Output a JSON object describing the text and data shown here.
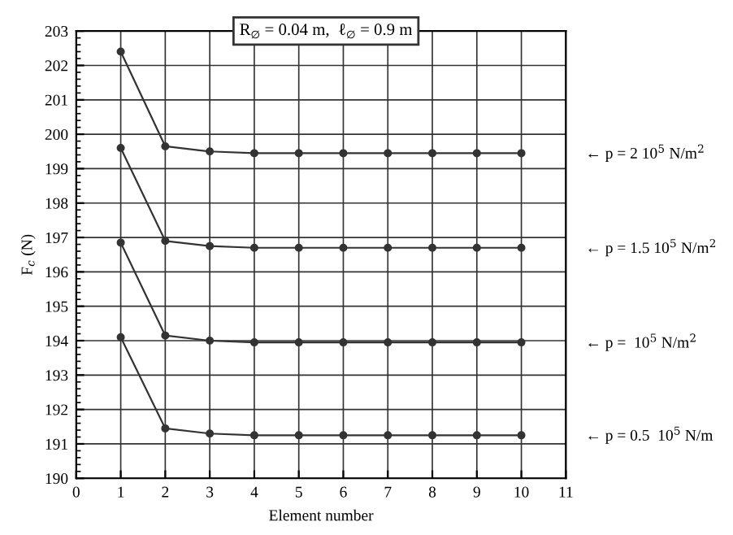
{
  "chart_data": {
    "type": "line",
    "title": "R$_{∅}$ = 0.04 m,  ℓ$_{∅}$ = 0.9 m",
    "xlabel": "Element number",
    "ylabel": "F$_{c}$ (N)",
    "x": [
      1,
      2,
      3,
      4,
      5,
      6,
      7,
      8,
      9,
      10
    ],
    "series": [
      {
        "color": "#333333",
        "values": [
          202.4,
          199.65,
          199.5,
          199.45,
          199.45,
          199.45,
          199.45,
          199.45,
          199.45,
          199.45
        ]
      },
      {
        "color": "#333333",
        "values": [
          199.6,
          196.9,
          196.75,
          196.7,
          196.7,
          196.7,
          196.7,
          196.7,
          196.7,
          196.7
        ]
      },
      {
        "color": "#333333",
        "values": [
          196.85,
          194.15,
          194.0,
          193.95,
          193.95,
          193.95,
          193.95,
          193.95,
          193.95,
          193.95
        ]
      },
      {
        "color": "#333333",
        "values": [
          194.1,
          191.45,
          191.3,
          191.25,
          191.25,
          191.25,
          191.25,
          191.25,
          191.25,
          191.25
        ]
      }
    ],
    "annotations": [
      "← p = 2 10$^{5}$ N/m$^{2}$",
      "← p = 1.5 10$^{5}$ N/m$^{2}$",
      "← p =  10$^{5}$ N/m$^{2}$",
      "← p = 0.5  10$^{5}$ N/m"
    ],
    "xlim": [
      0,
      11
    ],
    "xticks": [
      0,
      1,
      2,
      3,
      4,
      5,
      6,
      7,
      8,
      9,
      10,
      11
    ],
    "ylim": [
      190,
      203
    ],
    "yticks": [
      190,
      191,
      192,
      193,
      194,
      195,
      196,
      197,
      198,
      199,
      200,
      201,
      202,
      203
    ],
    "grid": true,
    "marker": "circle",
    "line_style": "solid",
    "legend": false
  }
}
